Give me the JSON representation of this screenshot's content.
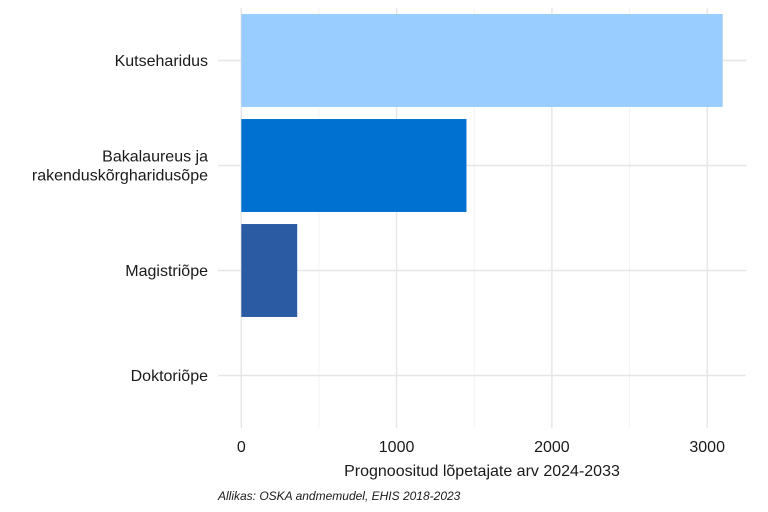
{
  "chart_data": {
    "type": "bar",
    "orientation": "horizontal",
    "categories": [
      [
        "Kutseharidus"
      ],
      [
        "Bakalaureus ja",
        "rakenduskõrgharidusõpe"
      ],
      [
        "Magistriõpe"
      ],
      [
        "Doktoriõpe"
      ]
    ],
    "values": [
      3100,
      1450,
      360,
      0
    ],
    "colors": [
      "#99CCFF",
      "#0070D1",
      "#2B5BA3",
      "#1F3F73"
    ],
    "xlabel": "Prognoositud lõpetajate arv 2024-2033",
    "ylabel": "",
    "xlim": [
      -150,
      3250
    ],
    "x_ticks": [
      0,
      1000,
      2000,
      3000
    ],
    "x_ticks_text": [
      "0",
      "1000",
      "2000",
      "3000"
    ],
    "grid": true,
    "legend": "none"
  },
  "caption": "Allikas: OSKA andmemudel, EHIS 2018-2023"
}
